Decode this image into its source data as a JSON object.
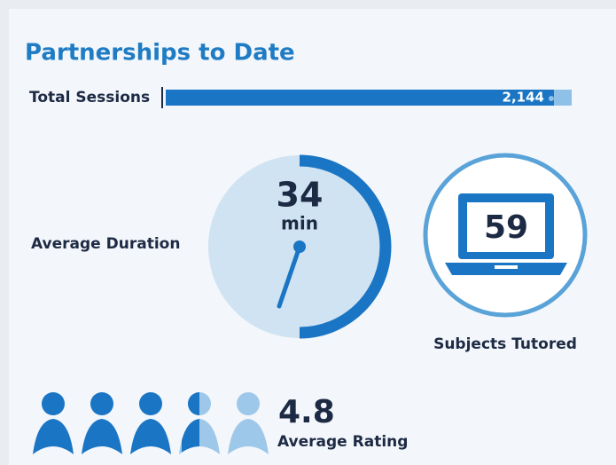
{
  "title": "Partnerships to Date",
  "total_sessions": {
    "label": "Total Sessions",
    "value": "2,144"
  },
  "average_duration": {
    "value": "34",
    "unit": "min",
    "label": "Average Duration"
  },
  "subjects_tutored": {
    "value": "59",
    "label": "Subjects Tutored"
  },
  "average_rating": {
    "value": "4.8",
    "label": "Average Rating"
  }
}
